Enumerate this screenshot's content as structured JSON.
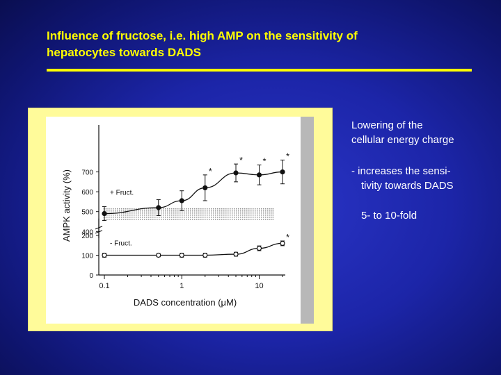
{
  "slide": {
    "title_line1": "Influence of fructose, i.e. high AMP on the sensitivity of",
    "title_line2": "hepatocytes towards DADS",
    "side_text": {
      "p1_line1": "Lowering of the",
      "p1_line2": "cellular energy charge",
      "p2_line1": "-  increases the sensi-",
      "p2_line2": "tivity towards DADS",
      "p3": "5- to 10-fold"
    },
    "colors": {
      "background": "#1c25a8",
      "title": "#ffff00",
      "panel": "#fffb9a",
      "text": "#ffffff"
    }
  },
  "chart_data": {
    "type": "line",
    "xlabel": "DADS concentration (μM)",
    "ylabel": "AMPK activity (%)",
    "xscale": "log",
    "xlim": [
      0.1,
      20
    ],
    "x_ticks": [
      0.1,
      1,
      10
    ],
    "x_tick_labels": [
      "0.1",
      "1",
      "10"
    ],
    "ylim": [
      0,
      800
    ],
    "y_ticks": [
      0,
      100,
      200,
      400,
      500,
      600,
      700
    ],
    "y_axis_break": [
      250,
      380
    ],
    "series": [
      {
        "name": "+ Fruct.",
        "marker": "filled-circle",
        "x": [
          0.1,
          0.5,
          1,
          2,
          5,
          10,
          20
        ],
        "values": [
          490,
          520,
          555,
          620,
          695,
          685,
          700
        ],
        "errors": [
          35,
          40,
          50,
          65,
          45,
          50,
          60
        ],
        "significance": [
          null,
          null,
          null,
          "*",
          "*",
          "*",
          "*"
        ],
        "baseline_band": [
          455,
          520
        ]
      },
      {
        "name": "- Fruct.",
        "marker": "open-circle",
        "x": [
          0.1,
          0.5,
          1,
          2,
          5,
          10,
          20
        ],
        "values": [
          100,
          100,
          100,
          100,
          105,
          135,
          160
        ],
        "errors": [
          10,
          8,
          10,
          10,
          10,
          12,
          12
        ],
        "significance": [
          null,
          null,
          null,
          null,
          null,
          null,
          "*"
        ]
      }
    ]
  }
}
